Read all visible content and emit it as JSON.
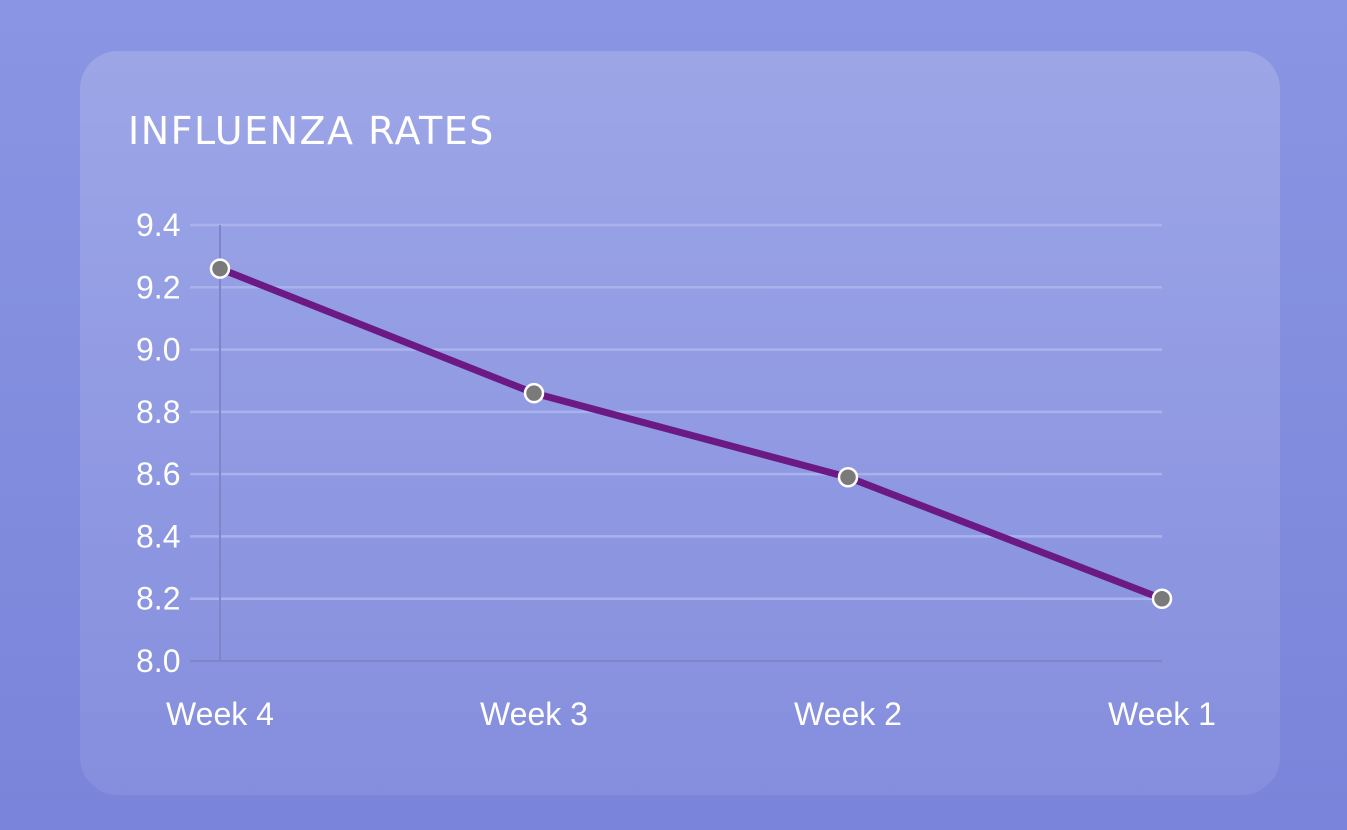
{
  "chart_data": {
    "type": "line",
    "title": "INFLUENZA RATES",
    "categories": [
      "Week 4",
      "Week 3",
      "Week 2",
      "Week 1"
    ],
    "series": [
      {
        "values": [
          9.26,
          8.86,
          8.59,
          8.2
        ]
      }
    ],
    "ylim": [
      8.0,
      9.4
    ],
    "yticks": [
      "8.0",
      "8.2",
      "8.4",
      "8.6",
      "8.8",
      "9.0",
      "9.2",
      "9.4"
    ],
    "grid": true,
    "colors": {
      "line": "#6b1a85",
      "marker_fill": "#7a7a7a",
      "marker_stroke": "#ffffff",
      "grid": "#aab2ee",
      "axis": "#7e86c8",
      "text": "#ffffff"
    }
  }
}
